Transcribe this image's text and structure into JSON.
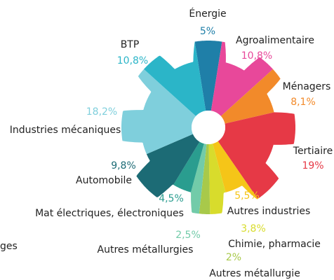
{
  "chart_data": {
    "type": "pie",
    "categories": [
      "Énergie",
      "Agroalimentaire",
      "Ménagers",
      "Tertiaire",
      "Autres industries",
      "Chimie, pharmacie",
      "Autres métallurgie",
      "Autres métallurgies",
      "Mat électriques, électroniques",
      "Automobile",
      "Industries mécaniques",
      "BTP"
    ],
    "values": [
      5,
      10.8,
      8.1,
      19,
      5.5,
      3.8,
      2,
      2.5,
      4.5,
      9.8,
      18.2,
      10.8
    ],
    "value_labels": [
      "5%",
      "10,8%",
      "8,1%",
      "19%",
      "5,5%",
      "3,8%",
      "2%",
      "2,5%",
      "4,5%",
      "9,8%",
      "18,2%",
      "10,8%"
    ],
    "colors": [
      "#1f7fa8",
      "#e8489a",
      "#f28a2a",
      "#e63946",
      "#f5c518",
      "#d8dc2c",
      "#a8c94a",
      "#72cba9",
      "#2a9d8f",
      "#1c6b75",
      "#7fcfdc",
      "#2bb5c8"
    ],
    "clipped_label": "ges"
  }
}
